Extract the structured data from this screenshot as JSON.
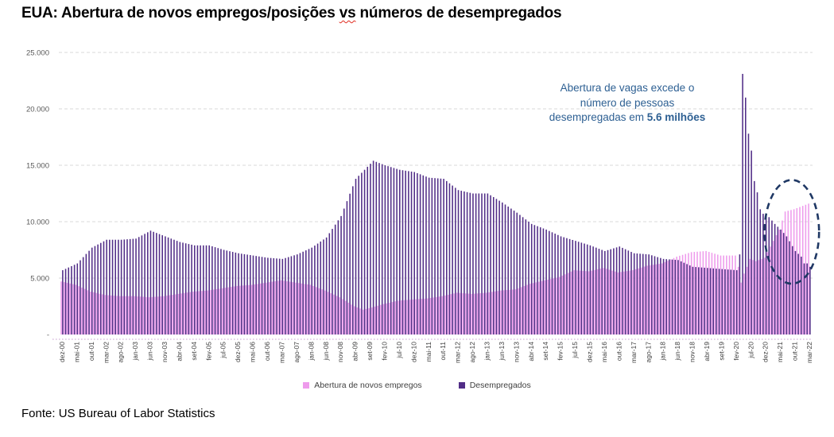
{
  "title": {
    "part1": "EUA: Abertura de novos empregos/posições ",
    "spellchecked_word": "vs",
    "part2": " números de desempregados"
  },
  "annotation": {
    "line1": "Abertura de vagas excede o",
    "line2": "número de pessoas",
    "line3_normal": "desempregadas em ",
    "line3_bold": "5.6 milhões"
  },
  "footer": "Fonte: US Bureau of Labor Statistics",
  "chart_data": {
    "type": "bar",
    "title": "EUA: Abertura de novos empregos/posições vs números de desempregados",
    "unit": "thousands of persons",
    "months_count": 256,
    "x_start": "dez-00",
    "x_end": "mar-22",
    "x_tick_every": 5,
    "x_tick_labels": [
      "dez-00",
      "mai-01",
      "out-01",
      "mar-02",
      "ago-02",
      "jan-03",
      "jun-03",
      "nov-03",
      "abr-04",
      "set-04",
      "fev-05",
      "jul-05",
      "dez-05",
      "mai-06",
      "out-06",
      "mar-07",
      "ago-07",
      "jan-08",
      "jun-08",
      "nov-08",
      "abr-09",
      "set-09",
      "fev-10",
      "jul-10",
      "dez-10",
      "mai-11",
      "out-11",
      "mar-12",
      "ago-12",
      "jan-13",
      "jun-13",
      "nov-13",
      "abr-14",
      "set-14",
      "fev-15",
      "jul-15",
      "dez-15",
      "mai-16",
      "out-16",
      "mar-17",
      "ago-17",
      "jan-18",
      "jun-18",
      "nov-18",
      "abr-19",
      "set-19",
      "fev-20",
      "jul-20",
      "dez-20",
      "mai-21",
      "out-21",
      "mar-22"
    ],
    "y_axis": [
      {
        "label": "25.000",
        "value": 25000
      },
      {
        "label": "20.000",
        "value": 20000
      },
      {
        "label": "15.000",
        "value": 15000
      },
      {
        "label": "10.000",
        "value": 10000
      },
      {
        "label": "5.000",
        "value": 5000
      },
      {
        "label": "-",
        "value": 0
      }
    ],
    "ylim": [
      0,
      25000
    ],
    "grid": "dashed-horizontal",
    "legend_position": "bottom",
    "series": [
      {
        "name": "Abertura de novos empregos",
        "color": "#ee9bec",
        "keypoints": [
          [
            0,
            4700
          ],
          [
            5,
            4400
          ],
          [
            10,
            3800
          ],
          [
            15,
            3500
          ],
          [
            20,
            3400
          ],
          [
            25,
            3400
          ],
          [
            30,
            3300
          ],
          [
            35,
            3400
          ],
          [
            40,
            3600
          ],
          [
            45,
            3800
          ],
          [
            50,
            3900
          ],
          [
            55,
            4100
          ],
          [
            60,
            4300
          ],
          [
            65,
            4400
          ],
          [
            70,
            4600
          ],
          [
            75,
            4800
          ],
          [
            80,
            4600
          ],
          [
            85,
            4400
          ],
          [
            90,
            3900
          ],
          [
            95,
            3300
          ],
          [
            100,
            2500
          ],
          [
            103,
            2200
          ],
          [
            106,
            2400
          ],
          [
            110,
            2700
          ],
          [
            115,
            3000
          ],
          [
            120,
            3100
          ],
          [
            125,
            3200
          ],
          [
            130,
            3400
          ],
          [
            135,
            3700
          ],
          [
            140,
            3600
          ],
          [
            145,
            3700
          ],
          [
            150,
            3900
          ],
          [
            155,
            4000
          ],
          [
            160,
            4500
          ],
          [
            165,
            4800
          ],
          [
            170,
            5100
          ],
          [
            175,
            5700
          ],
          [
            180,
            5600
          ],
          [
            185,
            5900
          ],
          [
            190,
            5500
          ],
          [
            195,
            5700
          ],
          [
            200,
            6100
          ],
          [
            205,
            6300
          ],
          [
            210,
            6900
          ],
          [
            215,
            7300
          ],
          [
            220,
            7400
          ],
          [
            225,
            7000
          ],
          [
            230,
            7000
          ],
          [
            231,
            6000
          ],
          [
            232,
            4600
          ],
          [
            233,
            5400
          ],
          [
            234,
            6000
          ],
          [
            235,
            6700
          ],
          [
            237,
            6500
          ],
          [
            240,
            6800
          ],
          [
            243,
            8300
          ],
          [
            245,
            9300
          ],
          [
            247,
            10900
          ],
          [
            250,
            11100
          ],
          [
            253,
            11400
          ],
          [
            255,
            11600
          ]
        ]
      },
      {
        "name": "Desempregados",
        "color": "#512d87",
        "keypoints": [
          [
            0,
            5700
          ],
          [
            5,
            6300
          ],
          [
            10,
            7700
          ],
          [
            15,
            8400
          ],
          [
            20,
            8400
          ],
          [
            25,
            8500
          ],
          [
            30,
            9200
          ],
          [
            35,
            8700
          ],
          [
            40,
            8200
          ],
          [
            45,
            7900
          ],
          [
            50,
            7900
          ],
          [
            55,
            7500
          ],
          [
            60,
            7200
          ],
          [
            65,
            7000
          ],
          [
            70,
            6800
          ],
          [
            75,
            6700
          ],
          [
            80,
            7100
          ],
          [
            85,
            7700
          ],
          [
            90,
            8600
          ],
          [
            95,
            10500
          ],
          [
            100,
            13800
          ],
          [
            106,
            15400
          ],
          [
            110,
            15000
          ],
          [
            115,
            14600
          ],
          [
            120,
            14400
          ],
          [
            125,
            13900
          ],
          [
            130,
            13800
          ],
          [
            135,
            12800
          ],
          [
            140,
            12500
          ],
          [
            145,
            12500
          ],
          [
            150,
            11700
          ],
          [
            155,
            10800
          ],
          [
            160,
            9800
          ],
          [
            165,
            9300
          ],
          [
            170,
            8700
          ],
          [
            175,
            8300
          ],
          [
            180,
            7900
          ],
          [
            185,
            7400
          ],
          [
            190,
            7800
          ],
          [
            195,
            7200
          ],
          [
            200,
            7100
          ],
          [
            205,
            6700
          ],
          [
            210,
            6600
          ],
          [
            215,
            6000
          ],
          [
            220,
            5900
          ],
          [
            225,
            5800
          ],
          [
            230,
            5700
          ],
          [
            231,
            7100
          ],
          [
            232,
            23100
          ],
          [
            233,
            21000
          ],
          [
            234,
            17800
          ],
          [
            235,
            16300
          ],
          [
            236,
            13600
          ],
          [
            237,
            12600
          ],
          [
            238,
            11100
          ],
          [
            239,
            10700
          ],
          [
            240,
            10700
          ],
          [
            242,
            10100
          ],
          [
            243,
            9800
          ],
          [
            245,
            9300
          ],
          [
            247,
            8700
          ],
          [
            250,
            7400
          ],
          [
            252,
            6900
          ],
          [
            253,
            6300
          ],
          [
            254,
            6300
          ],
          [
            255,
            6000
          ]
        ]
      }
    ],
    "highlight_ellipse": {
      "center_month_index": 249,
      "center_value": 9100,
      "rx_months": 9.3,
      "ry_value": 4600,
      "color": "#1f3864"
    },
    "annotation_text": "Abertura de vagas excede o número de pessoas desempregadas em 5.6 milhões"
  }
}
